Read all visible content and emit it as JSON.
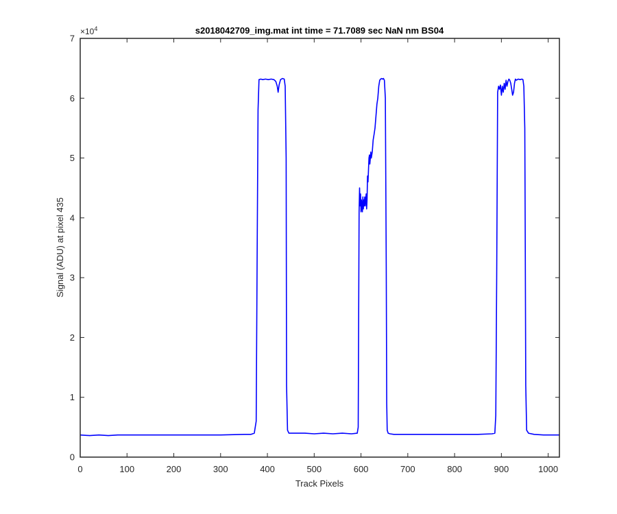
{
  "chart_data": {
    "type": "line",
    "title": "s2018042709_img.mat int time = 71.7089 sec  NaN nm BS04",
    "xlabel": "Track Pixels",
    "ylabel": "Signal (ADU) at pixel 435",
    "y_exponent_label": "×10",
    "y_exponent_power": "4",
    "xlim": [
      0,
      1024
    ],
    "ylim": [
      0,
      7
    ],
    "y_scale_multiplier": 10000,
    "grid": false,
    "legend": "none",
    "x_ticks": [
      0,
      100,
      200,
      300,
      400,
      500,
      600,
      700,
      800,
      900,
      1000
    ],
    "x_tick_labels": [
      "0",
      "100",
      "200",
      "300",
      "400",
      "500",
      "600",
      "700",
      "800",
      "900",
      "1000"
    ],
    "y_ticks": [
      0,
      1,
      2,
      3,
      4,
      5,
      6,
      7
    ],
    "y_tick_labels": [
      "0",
      "1",
      "2",
      "3",
      "4",
      "5",
      "6",
      "7"
    ],
    "series": [
      {
        "color": "#0000ff",
        "x": [
          0,
          20,
          40,
          60,
          80,
          100,
          150,
          200,
          250,
          300,
          350,
          365,
          372,
          376,
          378,
          380,
          382,
          386,
          390,
          396,
          402,
          408,
          414,
          418,
          421,
          423,
          425,
          428,
          432,
          436,
          438,
          440,
          441,
          443,
          446,
          460,
          480,
          500,
          520,
          540,
          560,
          580,
          592,
          594,
          596,
          597,
          598,
          599,
          600,
          601,
          602,
          603,
          604,
          605,
          606,
          607,
          608,
          609,
          610,
          611,
          612,
          613,
          614,
          615,
          616,
          617,
          618,
          619,
          620,
          621,
          622,
          624,
          626,
          628,
          630,
          632,
          634,
          636,
          638,
          640,
          642,
          644,
          646,
          648,
          650,
          652,
          654,
          655,
          656,
          658,
          662,
          670,
          700,
          750,
          800,
          850,
          880,
          886,
          888,
          890,
          892,
          894,
          896,
          898,
          900,
          902,
          904,
          906,
          908,
          910,
          912,
          914,
          916,
          918,
          920,
          922,
          924,
          926,
          928,
          930,
          932,
          934,
          936,
          940,
          944,
          946,
          948,
          950,
          951,
          952,
          954,
          958,
          970,
          990,
          1010,
          1024
        ],
        "y": [
          0.37,
          0.36,
          0.37,
          0.36,
          0.37,
          0.37,
          0.37,
          0.37,
          0.37,
          0.37,
          0.38,
          0.38,
          0.4,
          0.6,
          3.2,
          5.8,
          6.31,
          6.32,
          6.31,
          6.32,
          6.31,
          6.32,
          6.31,
          6.28,
          6.2,
          6.1,
          6.22,
          6.31,
          6.33,
          6.32,
          6.2,
          5.0,
          1.2,
          0.45,
          0.4,
          0.4,
          0.4,
          0.39,
          0.4,
          0.39,
          0.4,
          0.39,
          0.4,
          0.5,
          4.1,
          4.5,
          4.2,
          4.4,
          4.1,
          4.3,
          4.2,
          4.1,
          4.35,
          4.15,
          4.3,
          4.2,
          4.35,
          4.2,
          4.3,
          4.4,
          4.15,
          4.3,
          4.7,
          4.6,
          4.8,
          5.0,
          5.05,
          4.9,
          5.0,
          5.1,
          5.0,
          5.1,
          5.3,
          5.4,
          5.5,
          5.7,
          5.9,
          6.0,
          6.2,
          6.3,
          6.32,
          6.33,
          6.32,
          6.33,
          6.3,
          6.0,
          3.2,
          0.9,
          0.45,
          0.4,
          0.39,
          0.38,
          0.38,
          0.38,
          0.38,
          0.38,
          0.39,
          0.4,
          0.7,
          3.0,
          6.1,
          6.2,
          6.15,
          6.22,
          6.05,
          6.2,
          6.1,
          6.25,
          6.15,
          6.3,
          6.2,
          6.28,
          6.32,
          6.3,
          6.25,
          6.15,
          6.05,
          6.1,
          6.25,
          6.32,
          6.3,
          6.31,
          6.32,
          6.31,
          6.32,
          6.31,
          6.2,
          5.5,
          3.5,
          1.2,
          0.45,
          0.4,
          0.38,
          0.37,
          0.37,
          0.37
        ]
      }
    ]
  }
}
